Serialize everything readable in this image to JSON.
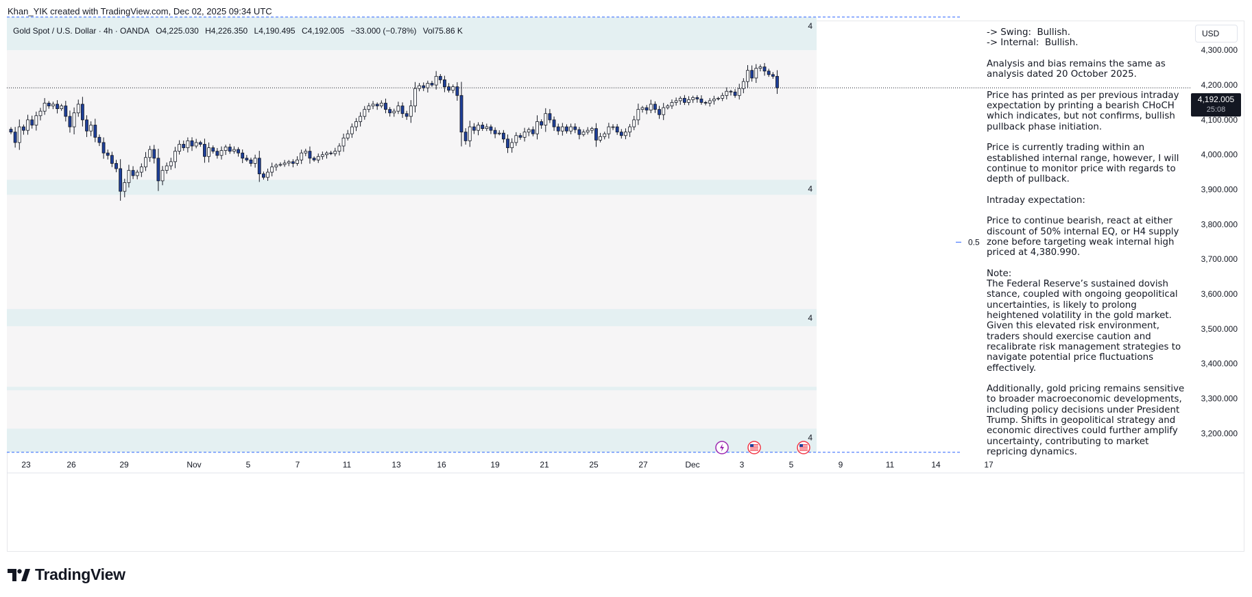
{
  "header": {
    "attribution": "Khan_YIK created with TradingView.com, Dec 02, 2025 09:34 UTC"
  },
  "legend": {
    "symbol": "Gold Spot / U.S. Dollar · 4h · OANDA",
    "open": "O4,225.030",
    "high": "H4,226.350",
    "low": "L4,190.495",
    "close": "C4,192.005",
    "change": "−33.000 (−0.78%)",
    "volume": "Vol75.86 K"
  },
  "currency": "USD",
  "last_price": {
    "value": "4,192.005",
    "countdown": "25:08"
  },
  "zone_labels": [
    "4",
    "4",
    "4",
    "4"
  ],
  "level_label": "0.5",
  "notes": {
    "text": "-> Swing:  Bullish.\n-> Internal:  Bullish.\n\nAnalysis and bias remains the same as analysis dated 20 October 2025.\n\nPrice has printed as per previous intraday expectation by printing a bearish CHoCH which indicates, but not confirms, bullish pullback phase initiation.\n\nPrice is currently trading within an established internal range, however, I will continue to monitor price with regards to depth of pullback.\n\nIntraday expectation:\n\nPrice to continue bearish, react at either discount of 50% internal EQ, or H4 supply zone before targeting weak internal high priced at 4,380.990.\n\nNote:\nThe Federal Reserve’s sustained dovish stance, coupled with ongoing geopolitical uncertainties, is likely to prolong heightened volatility in the gold market. Given this elevated risk environment, traders should exercise caution and recalibrate risk management strategies to navigate potential price fluctuations effectively.\n\nAdditionally, gold pricing remains sensitive to broader macroeconomic developments, including policy decisions under President Trump. Shifts in geopolitical strategy and economic directives could further amplify uncertainty, contributing to market repricing dynamics."
  },
  "footer": {
    "brand": "TradingView"
  },
  "colors": {
    "bull": "#ffffff",
    "bear": "#1e3f99",
    "wick": "#131722",
    "zone": "#e4f0f2",
    "range_bg": "#f6f5f6",
    "dashed": "#2962ff",
    "event_lightning": "#9c27b0",
    "event_flag": "#f23645"
  },
  "chart_data": {
    "type": "candlestick",
    "title": "Gold Spot / U.S. Dollar · 4h · OANDA",
    "timeframe": "4h",
    "x_tick_labels": [
      "23",
      "26",
      "29",
      "Nov",
      "5",
      "7",
      "11",
      "13",
      "16",
      "19",
      "21",
      "25",
      "27",
      "Dec",
      "3",
      "5",
      "9",
      "11",
      "14",
      "17"
    ],
    "y_tick_labels": [
      "4,300.000",
      "4,200.000",
      "4,100.000",
      "4,000.000",
      "3,900.000",
      "3,800.000",
      "3,700.000",
      "3,600.000",
      "3,500.000",
      "3,400.000",
      "3,300.000",
      "3,200.000"
    ],
    "ylim": [
      3130,
      4385
    ],
    "grid": false,
    "zones": [
      {
        "low": 4300,
        "high": 4395,
        "label": "4"
      },
      {
        "low": 3885,
        "high": 3928,
        "label": "4"
      },
      {
        "low": 3508,
        "high": 3557,
        "label": "4"
      },
      {
        "low": 3324,
        "high": 3334,
        "label": ""
      },
      {
        "low": 3146,
        "high": 3214,
        "label": "4"
      }
    ],
    "range_shading": {
      "low": 3146,
      "high": 4300
    },
    "levels": [
      {
        "name": "0.5",
        "value": 3749
      },
      {
        "name": "last",
        "value": 4192.005
      },
      {
        "name": "dashed-top",
        "value": 4395
      },
      {
        "name": "dashed-bottom",
        "value": 3146
      }
    ],
    "closes": [
      4065,
      4035,
      4080,
      4070,
      4100,
      4085,
      4112,
      4125,
      4148,
      4140,
      4145,
      4132,
      4140,
      4110,
      4080,
      4120,
      4145,
      4100,
      4068,
      4085,
      4050,
      4035,
      4005,
      3998,
      3975,
      3960,
      3895,
      3920,
      3955,
      3940,
      3950,
      3965,
      3992,
      4015,
      3990,
      3925,
      3955,
      3968,
      3980,
      4010,
      4030,
      4020,
      4040,
      4025,
      4035,
      4030,
      3995,
      4020,
      4010,
      3998,
      4012,
      4022,
      4010,
      4015,
      4005,
      3990,
      3985,
      3975,
      3990,
      3945,
      3935,
      3950,
      3965,
      3970,
      3972,
      3976,
      3980,
      3975,
      3985,
      4005,
      4010,
      3990,
      3985,
      3995,
      4000,
      4005,
      4003,
      4010,
      4025,
      4048,
      4060,
      4080,
      4095,
      4110,
      4130,
      4140,
      4145,
      4140,
      4148,
      4130,
      4120,
      4125,
      4140,
      4118,
      4110,
      4140,
      4190,
      4198,
      4192,
      4205,
      4200,
      4225,
      4215,
      4195,
      4185,
      4195,
      4170,
      4065,
      4040,
      4080,
      4070,
      4085,
      4075,
      4080,
      4070,
      4060,
      4062,
      4045,
      4020,
      4035,
      4055,
      4050,
      4065,
      4072,
      4060,
      4095,
      4085,
      4118,
      4100,
      4080,
      4068,
      4080,
      4068,
      4080,
      4072,
      4058,
      4065,
      4070,
      4075,
      4042,
      4052,
      4060,
      4080,
      4080,
      4065,
      4055,
      4065,
      4080,
      4100,
      4130,
      4135,
      4128,
      4145,
      4130,
      4115,
      4135,
      4140,
      4150,
      4155,
      4162,
      4150,
      4158,
      4164,
      4160,
      4150,
      4148,
      4155,
      4160,
      4162,
      4170,
      4182,
      4180,
      4170,
      4190,
      4210,
      4242,
      4220,
      4248,
      4252,
      4240,
      4230,
      4225,
      4192
    ]
  }
}
